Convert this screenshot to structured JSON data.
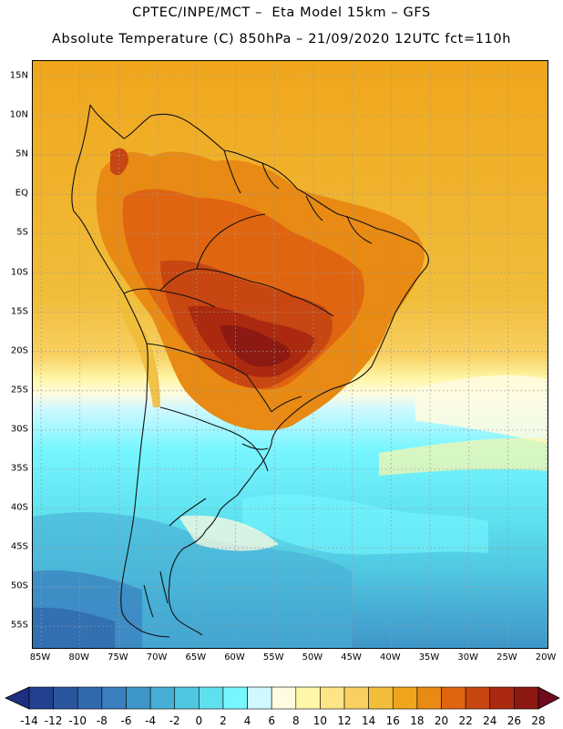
{
  "header": {
    "title_line1": "CPTEC/INPE/MCT –  Eta Model 15km – GFS",
    "title_line2": "Absolute Temperature (C) 850hPa – 21/09/2020 12UTC fct=110h"
  },
  "map": {
    "variable": "Absolute Temperature (C) 850hPa",
    "region": "South America",
    "lat_labels": [
      "15N",
      "10N",
      "5N",
      "EQ",
      "5S",
      "10S",
      "15S",
      "20S",
      "25S",
      "30S",
      "35S",
      "40S",
      "45S",
      "50S",
      "55S"
    ],
    "lon_labels": [
      "85W",
      "80W",
      "75W",
      "70W",
      "65W",
      "60W",
      "55W",
      "50W",
      "45W",
      "40W",
      "35W",
      "30W",
      "25W",
      "20W"
    ],
    "gridlines": "dotted"
  },
  "colorbar": {
    "tick_labels": [
      "-14",
      "-12",
      "-10",
      "-8",
      "-6",
      "-4",
      "-2",
      "0",
      "2",
      "4",
      "6",
      "8",
      "10",
      "12",
      "14",
      "16",
      "18",
      "20",
      "22",
      "24",
      "26",
      "28"
    ],
    "low_extend_color": "#1f2f7f",
    "high_extend_color": "#6f0b1d",
    "colors": [
      "#22408f",
      "#2b569d",
      "#3169ad",
      "#3a7fbf",
      "#3f96c9",
      "#47aed6",
      "#50c6e0",
      "#5ee0ee",
      "#77f6ff",
      "#d0f8ff",
      "#fffbe0",
      "#fff7a8",
      "#fde484",
      "#f8d062",
      "#f1bd3a",
      "#f0a61c",
      "#e88a13",
      "#e06510",
      "#c74612",
      "#ab2a0f",
      "#8c1a12"
    ]
  }
}
